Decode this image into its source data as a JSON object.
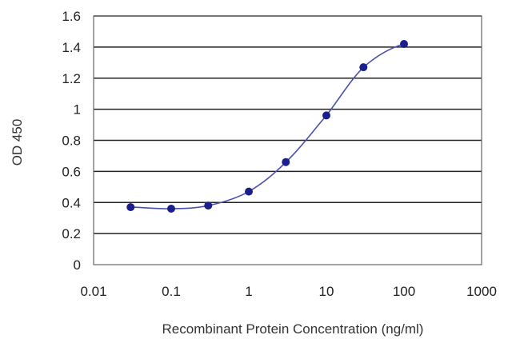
{
  "chart_data": {
    "type": "scatter",
    "title": "",
    "xlabel": "Recombinant Protein Concentration (ng/ml)",
    "ylabel": "OD 450",
    "x_scale": "log",
    "xlim": [
      0.01,
      1000
    ],
    "ylim": [
      0,
      1.6
    ],
    "x_ticks": [
      0.01,
      0.1,
      1,
      10,
      100,
      1000
    ],
    "x_tick_labels": [
      "0.01",
      "0.1",
      "1",
      "10",
      "100",
      "1000"
    ],
    "y_ticks": [
      0,
      0.2,
      0.4,
      0.6,
      0.8,
      1,
      1.2,
      1.4,
      1.6
    ],
    "y_tick_labels": [
      "0",
      "0.2",
      "0.4",
      "0.6",
      "0.8",
      "1",
      "1.2",
      "1.4",
      "1.6"
    ],
    "grid": "horizontal",
    "legend": "none",
    "series": [
      {
        "x": [
          0.03,
          0.1,
          0.3,
          1,
          3,
          10,
          30,
          100
        ],
        "y": [
          0.37,
          0.36,
          0.38,
          0.47,
          0.66,
          0.96,
          1.27,
          1.42
        ],
        "color": "#1a1f8c",
        "fit": "sigmoid"
      }
    ],
    "colors": {
      "marker": "#1a1f8c",
      "curve": "#4a50b0",
      "grid": "#222222",
      "frame": "#666666"
    }
  }
}
